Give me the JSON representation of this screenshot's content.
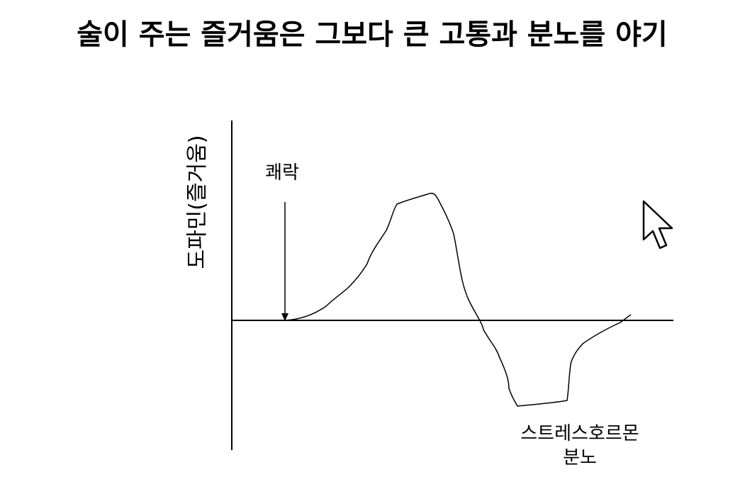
{
  "title": "술이 주는 즐거움은 그보다 큰 고통과 분노를 야기",
  "y_axis_label": "도파민(즐거움)",
  "annotation": "쾌락",
  "bottom_label": [
    "스트레스호르몬",
    "분노"
  ]
}
